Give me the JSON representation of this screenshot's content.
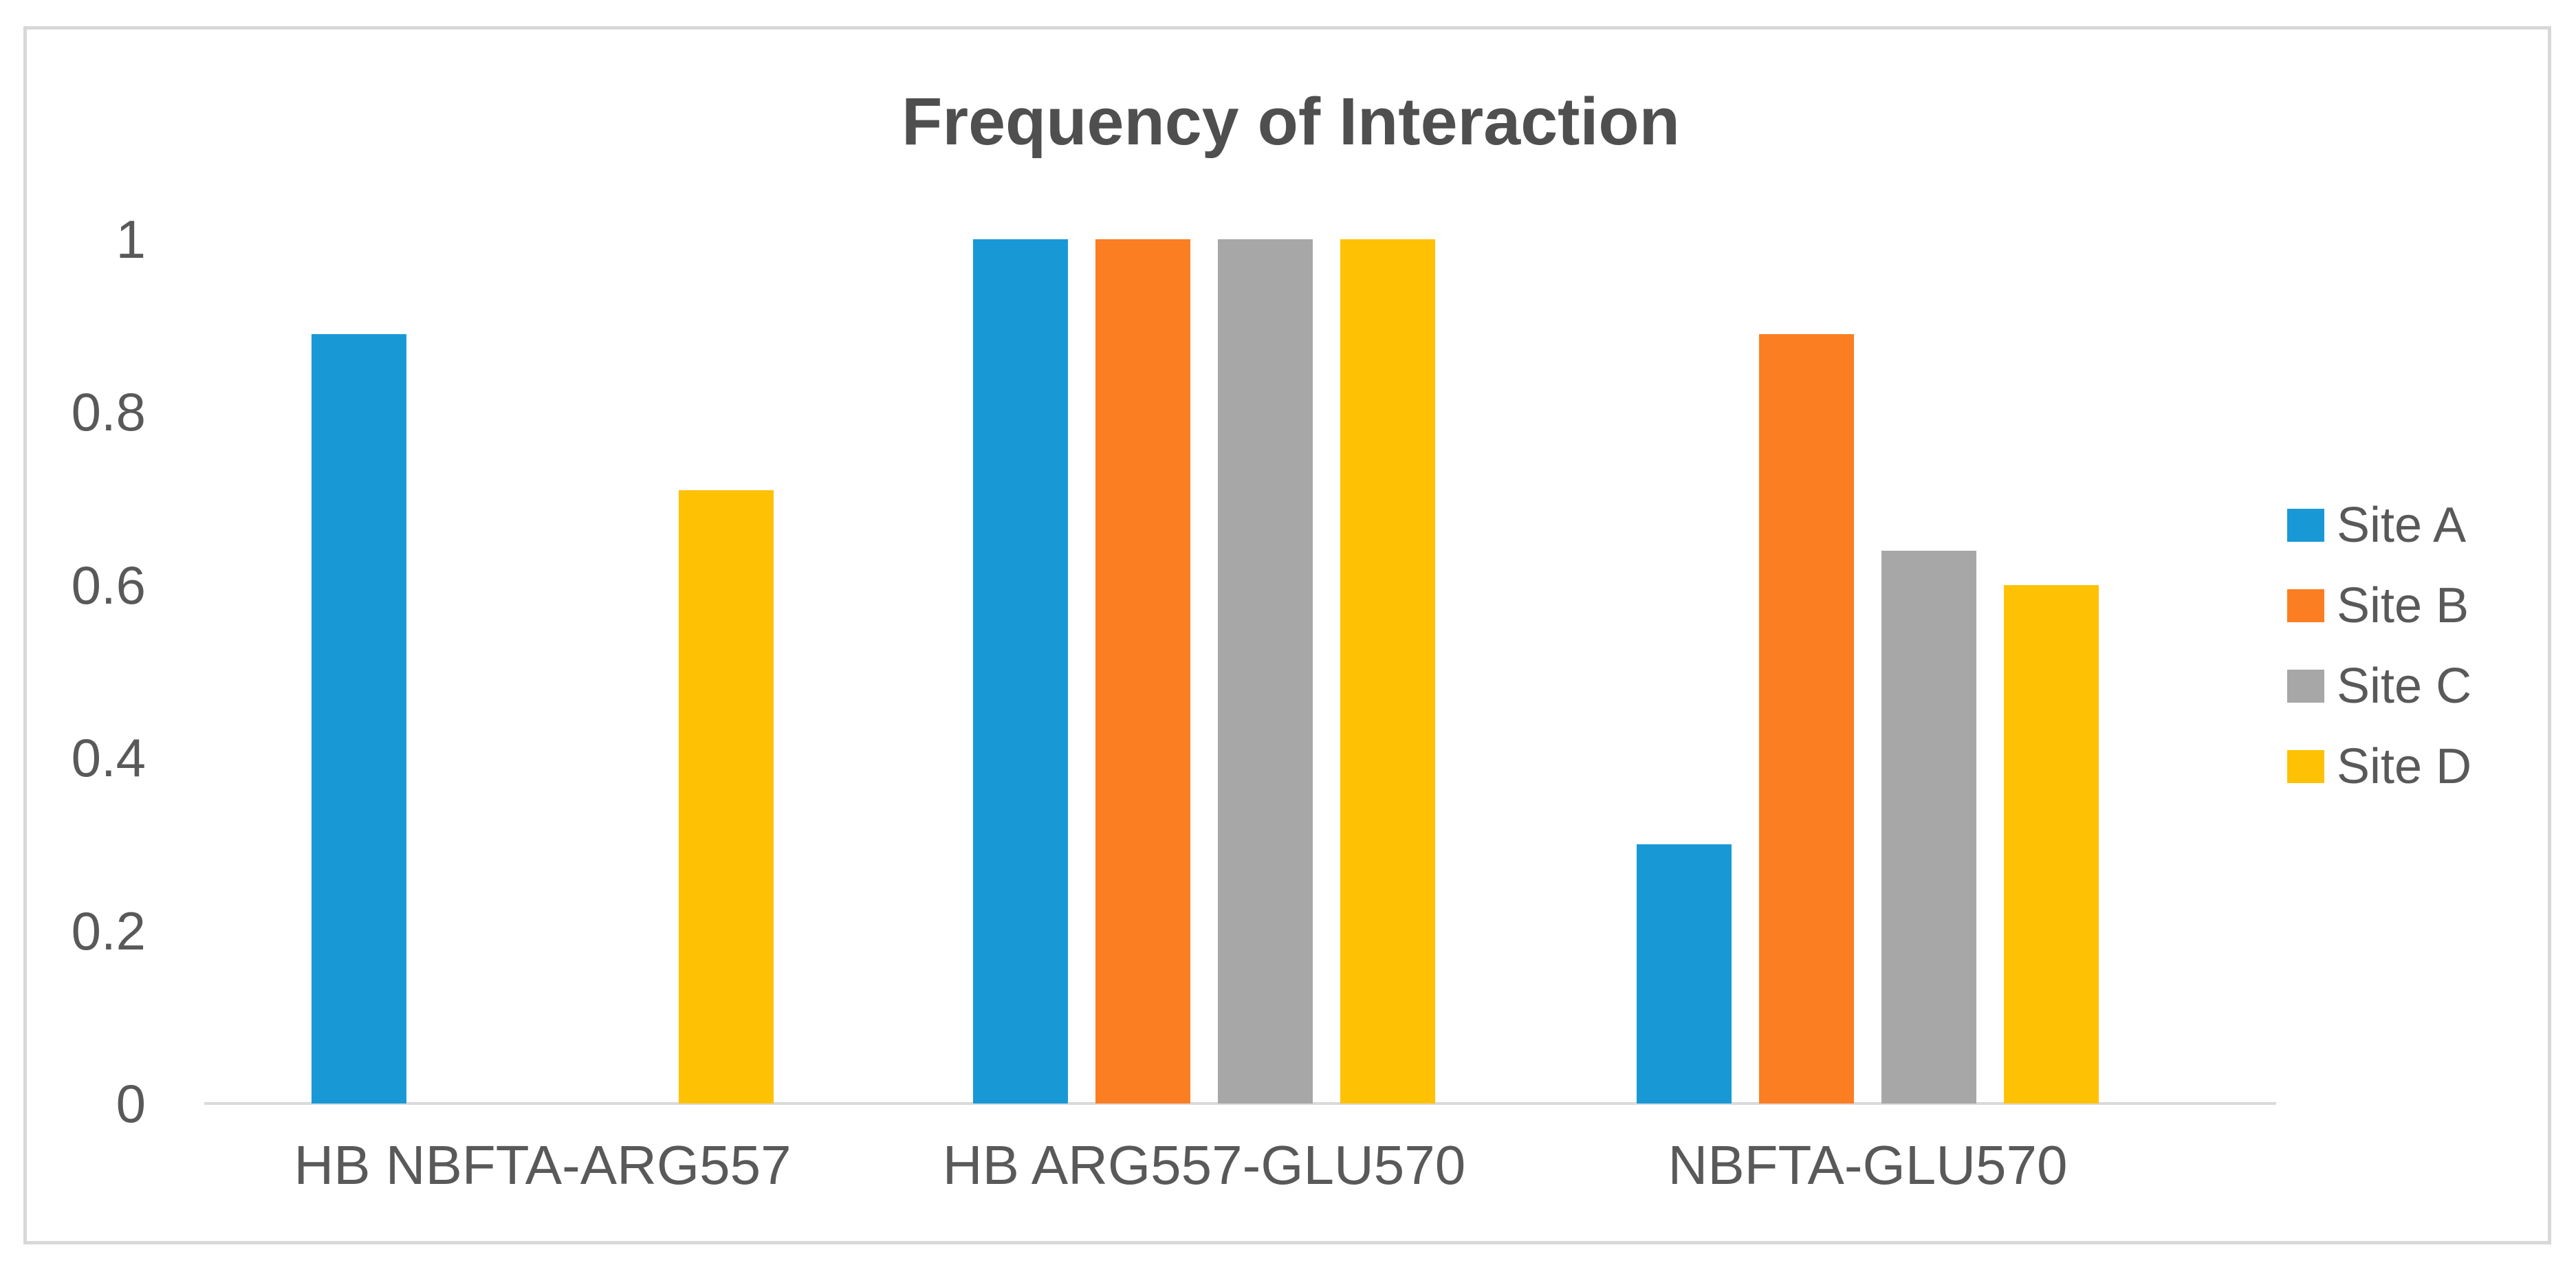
{
  "title": "Frequency of Interaction",
  "colors": {
    "title_text": "#4F4F4F",
    "axis_text": "#595959",
    "axis_line": "#D9D9D9",
    "frame_border": "#D8D8D8",
    "background": "#FFFFFF"
  },
  "chart_data": {
    "type": "bar",
    "title": "Frequency of Interaction",
    "categories": [
      "HB NBFTA-ARG557",
      "HB ARG557-GLU570",
      "NBFTA-GLU570"
    ],
    "series": [
      {
        "name": "Site A",
        "color": "#1899D6",
        "values": [
          0.89,
          1.0,
          0.3
        ]
      },
      {
        "name": "Site B",
        "color": "#FB7E23",
        "values": [
          0,
          1.0,
          0.89
        ]
      },
      {
        "name": "Site C",
        "color": "#A7A7A7",
        "values": [
          0,
          1.0,
          0.64
        ]
      },
      {
        "name": "Site D",
        "color": "#FFC104",
        "values": [
          0.71,
          1.0,
          0.6
        ]
      }
    ],
    "ylim": [
      0,
      1
    ],
    "yticks": [
      "1",
      "0.8",
      "0.6",
      "0.4",
      "0.2",
      "0"
    ],
    "xlabel": "",
    "ylabel": "",
    "grid": false,
    "legend_position": "right"
  }
}
